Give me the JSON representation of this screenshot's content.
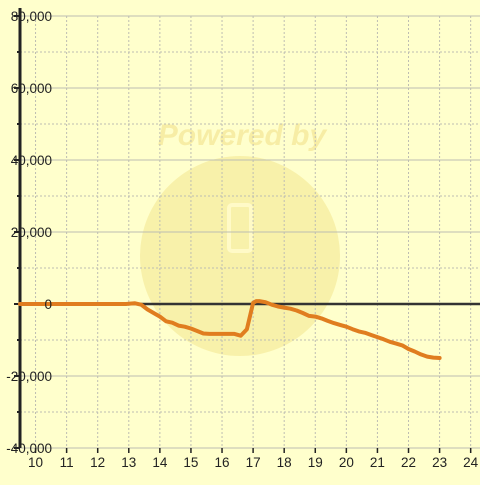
{
  "colors": {
    "background": "#ffffcc",
    "line": "#e07d1f",
    "grid": "#bdbdb2",
    "axis": "#222222",
    "zero_line": "#333333",
    "watermark": "#f1df86"
  },
  "watermark": {
    "text": "Powered by"
  },
  "chart_data": {
    "type": "line",
    "title": "",
    "xlabel": "",
    "ylabel": "",
    "xlim": [
      9.5,
      24.3
    ],
    "ylim": [
      -40000,
      80000
    ],
    "grid": true,
    "x_ticks": [
      10,
      11,
      12,
      13,
      14,
      15,
      16,
      17,
      18,
      19,
      20,
      21,
      22,
      23,
      24
    ],
    "x_tick_labels": [
      "10",
      "11",
      "12",
      "13",
      "14",
      "15",
      "16",
      "17",
      "18",
      "19",
      "20",
      "21",
      "22",
      "23",
      "24"
    ],
    "y_ticks": [
      -40000,
      -20000,
      0,
      20000,
      40000,
      60000,
      80000
    ],
    "y_tick_labels": [
      "-40,000",
      "-20,000",
      "0",
      "20,000",
      "40,000",
      "60,000",
      "80,000"
    ],
    "series": [
      {
        "x": [
          9.5,
          12.9,
          13.2,
          13.4,
          13.6,
          13.8,
          14.0,
          14.2,
          14.4,
          14.6,
          14.8,
          15.0,
          15.2,
          15.4,
          15.6,
          15.8,
          16.0,
          16.2,
          16.4,
          16.6,
          16.8,
          17.0,
          17.1,
          17.2,
          17.4,
          17.6,
          17.8,
          18.0,
          18.2,
          18.4,
          18.6,
          18.8,
          19.0,
          19.2,
          19.4,
          19.6,
          19.8,
          20.0,
          20.2,
          20.4,
          20.6,
          20.8,
          21.0,
          21.2,
          21.4,
          21.6,
          21.8,
          22.0,
          22.2,
          22.4,
          22.6,
          22.8,
          23.0
        ],
        "y": [
          0,
          0,
          200,
          -200,
          -1500,
          -2500,
          -3500,
          -4800,
          -5200,
          -6000,
          -6300,
          -6800,
          -7500,
          -8200,
          -8300,
          -8300,
          -8300,
          -8300,
          -8300,
          -8800,
          -7000,
          300,
          800,
          800,
          500,
          -200,
          -700,
          -1000,
          -1300,
          -1800,
          -2500,
          -3300,
          -3500,
          -4000,
          -4700,
          -5300,
          -5800,
          -6300,
          -7000,
          -7600,
          -8000,
          -8600,
          -9200,
          -9800,
          -10500,
          -11000,
          -11500,
          -12500,
          -13200,
          -14000,
          -14600,
          -14900,
          -15000
        ]
      }
    ]
  }
}
